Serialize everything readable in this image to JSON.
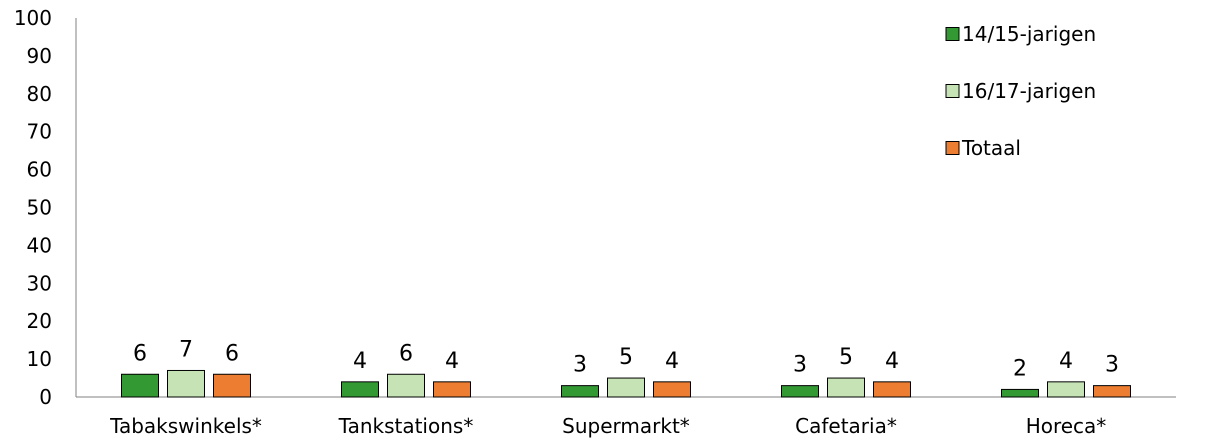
{
  "chart_data": {
    "type": "bar",
    "categories": [
      "Tabakswinkels*",
      "Tankstations*",
      "Supermarkt*",
      "Cafetaria*",
      "Horeca*"
    ],
    "series": [
      {
        "name": "14/15-jarigen",
        "values": [
          6,
          4,
          3,
          3,
          2
        ],
        "color": "#339933"
      },
      {
        "name": "16/17-jarigen",
        "values": [
          7,
          6,
          5,
          5,
          4
        ],
        "color": "#c6e3b5"
      },
      {
        "name": "Totaal",
        "values": [
          6,
          4,
          4,
          4,
          3
        ],
        "color": "#ed7d31"
      }
    ],
    "yticks": [
      "0",
      "10",
      "20",
      "30",
      "40",
      "50",
      "60",
      "70",
      "80",
      "90",
      "100"
    ],
    "ylim": [
      0,
      100
    ],
    "grid": false,
    "legend_position": "top-right",
    "bar_stroke": "#000000",
    "title": "",
    "xlabel": "",
    "ylabel": ""
  }
}
